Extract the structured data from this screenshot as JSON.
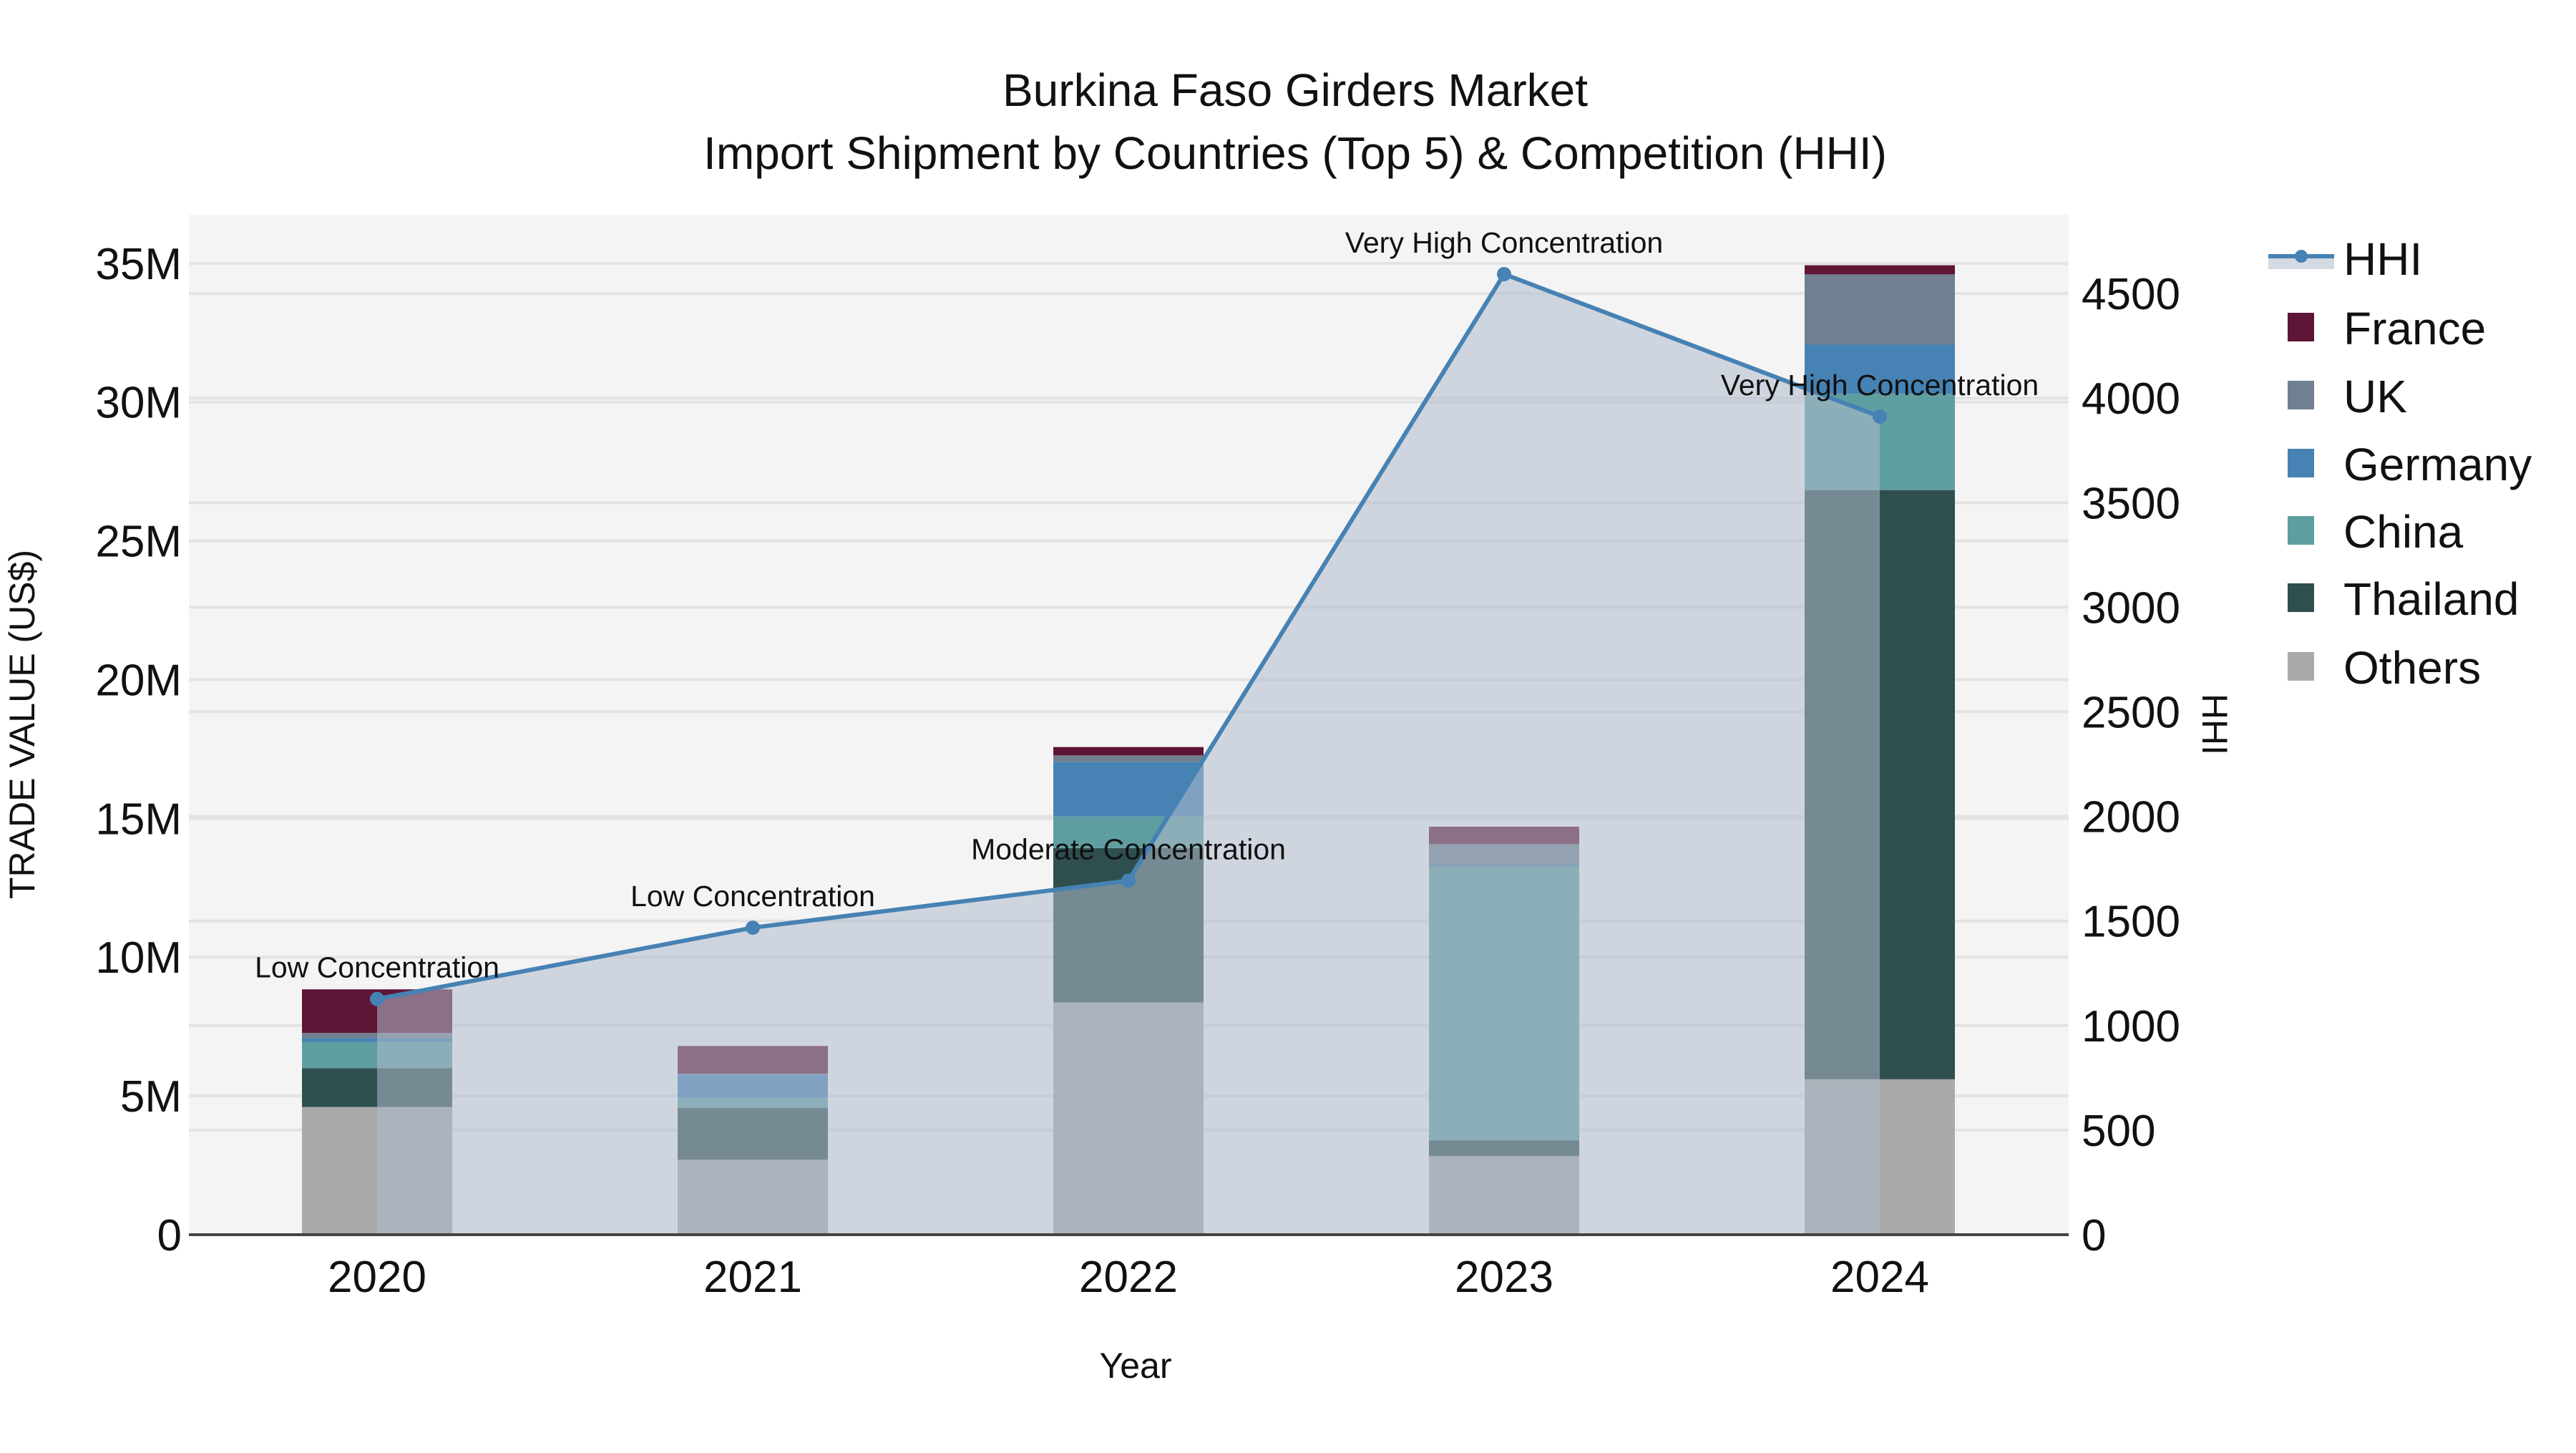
{
  "title": {
    "line1": "Burkina Faso Girders Market",
    "line2": "Import Shipment by Countries (Top 5) & Competition (HHI)"
  },
  "axes": {
    "x_title": "Year",
    "y_left_title": "TRADE VALUE (US$)",
    "y_right_title": "HHI",
    "y_left_ticks": [
      "0",
      "5M",
      "10M",
      "15M",
      "20M",
      "25M",
      "30M",
      "35M"
    ],
    "y_right_ticks": [
      "0",
      "500",
      "1000",
      "1500",
      "2000",
      "2500",
      "3000",
      "3500",
      "4000",
      "4500"
    ]
  },
  "colors": {
    "France": "#5f1535",
    "UK": "#708090",
    "Germany": "#4682b4",
    "China": "#5f9ea0",
    "Thailand": "#2f4f4f",
    "Others": "#a9a9a9",
    "HHI_line": "#4682b4",
    "HHI_fill": "rgba(176,187,204,0.55)",
    "plot_bg": "#f4f4f4",
    "grid": "#e3e3e3"
  },
  "legend": [
    {
      "name": "HHI",
      "type": "line"
    },
    {
      "name": "France",
      "type": "box"
    },
    {
      "name": "UK",
      "type": "box"
    },
    {
      "name": "Germany",
      "type": "box"
    },
    {
      "name": "China",
      "type": "box"
    },
    {
      "name": "Thailand",
      "type": "box"
    },
    {
      "name": "Others",
      "type": "box"
    }
  ],
  "chart_data": {
    "type": "bar",
    "stacked": true,
    "title": "Burkina Faso Girders Market — Import Shipment by Countries (Top 5) & Competition (HHI)",
    "xlabel": "Year",
    "ylabel": "TRADE VALUE (US$)",
    "y2label": "HHI",
    "ylim": [
      0,
      36750000
    ],
    "y2lim": [
      0,
      4877
    ],
    "categories": [
      "2020",
      "2021",
      "2022",
      "2023",
      "2024"
    ],
    "series": [
      {
        "name": "Others",
        "values": [
          4600000,
          2700000,
          8370000,
          2830000,
          5600000
        ]
      },
      {
        "name": "Thailand",
        "values": [
          1400000,
          1870000,
          5560000,
          570000,
          21230000
        ]
      },
      {
        "name": "China",
        "values": [
          950000,
          360000,
          1140000,
          9870000,
          3470000
        ]
      },
      {
        "name": "Germany",
        "values": [
          130000,
          840000,
          1970000,
          50000,
          1770000
        ]
      },
      {
        "name": "UK",
        "values": [
          190000,
          30000,
          230000,
          750000,
          2530000
        ]
      },
      {
        "name": "France",
        "values": [
          1570000,
          1000000,
          300000,
          630000,
          330000
        ]
      }
    ],
    "line_series": {
      "name": "HHI",
      "axis": "right",
      "values": [
        1127,
        1468,
        1693,
        4593,
        3912
      ],
      "labels": [
        "Low Concentration",
        "Low Concentration",
        "Moderate Concentration",
        "Very High Concentration",
        "Very High Concentration"
      ]
    },
    "legend_position": "right",
    "grid": true
  }
}
